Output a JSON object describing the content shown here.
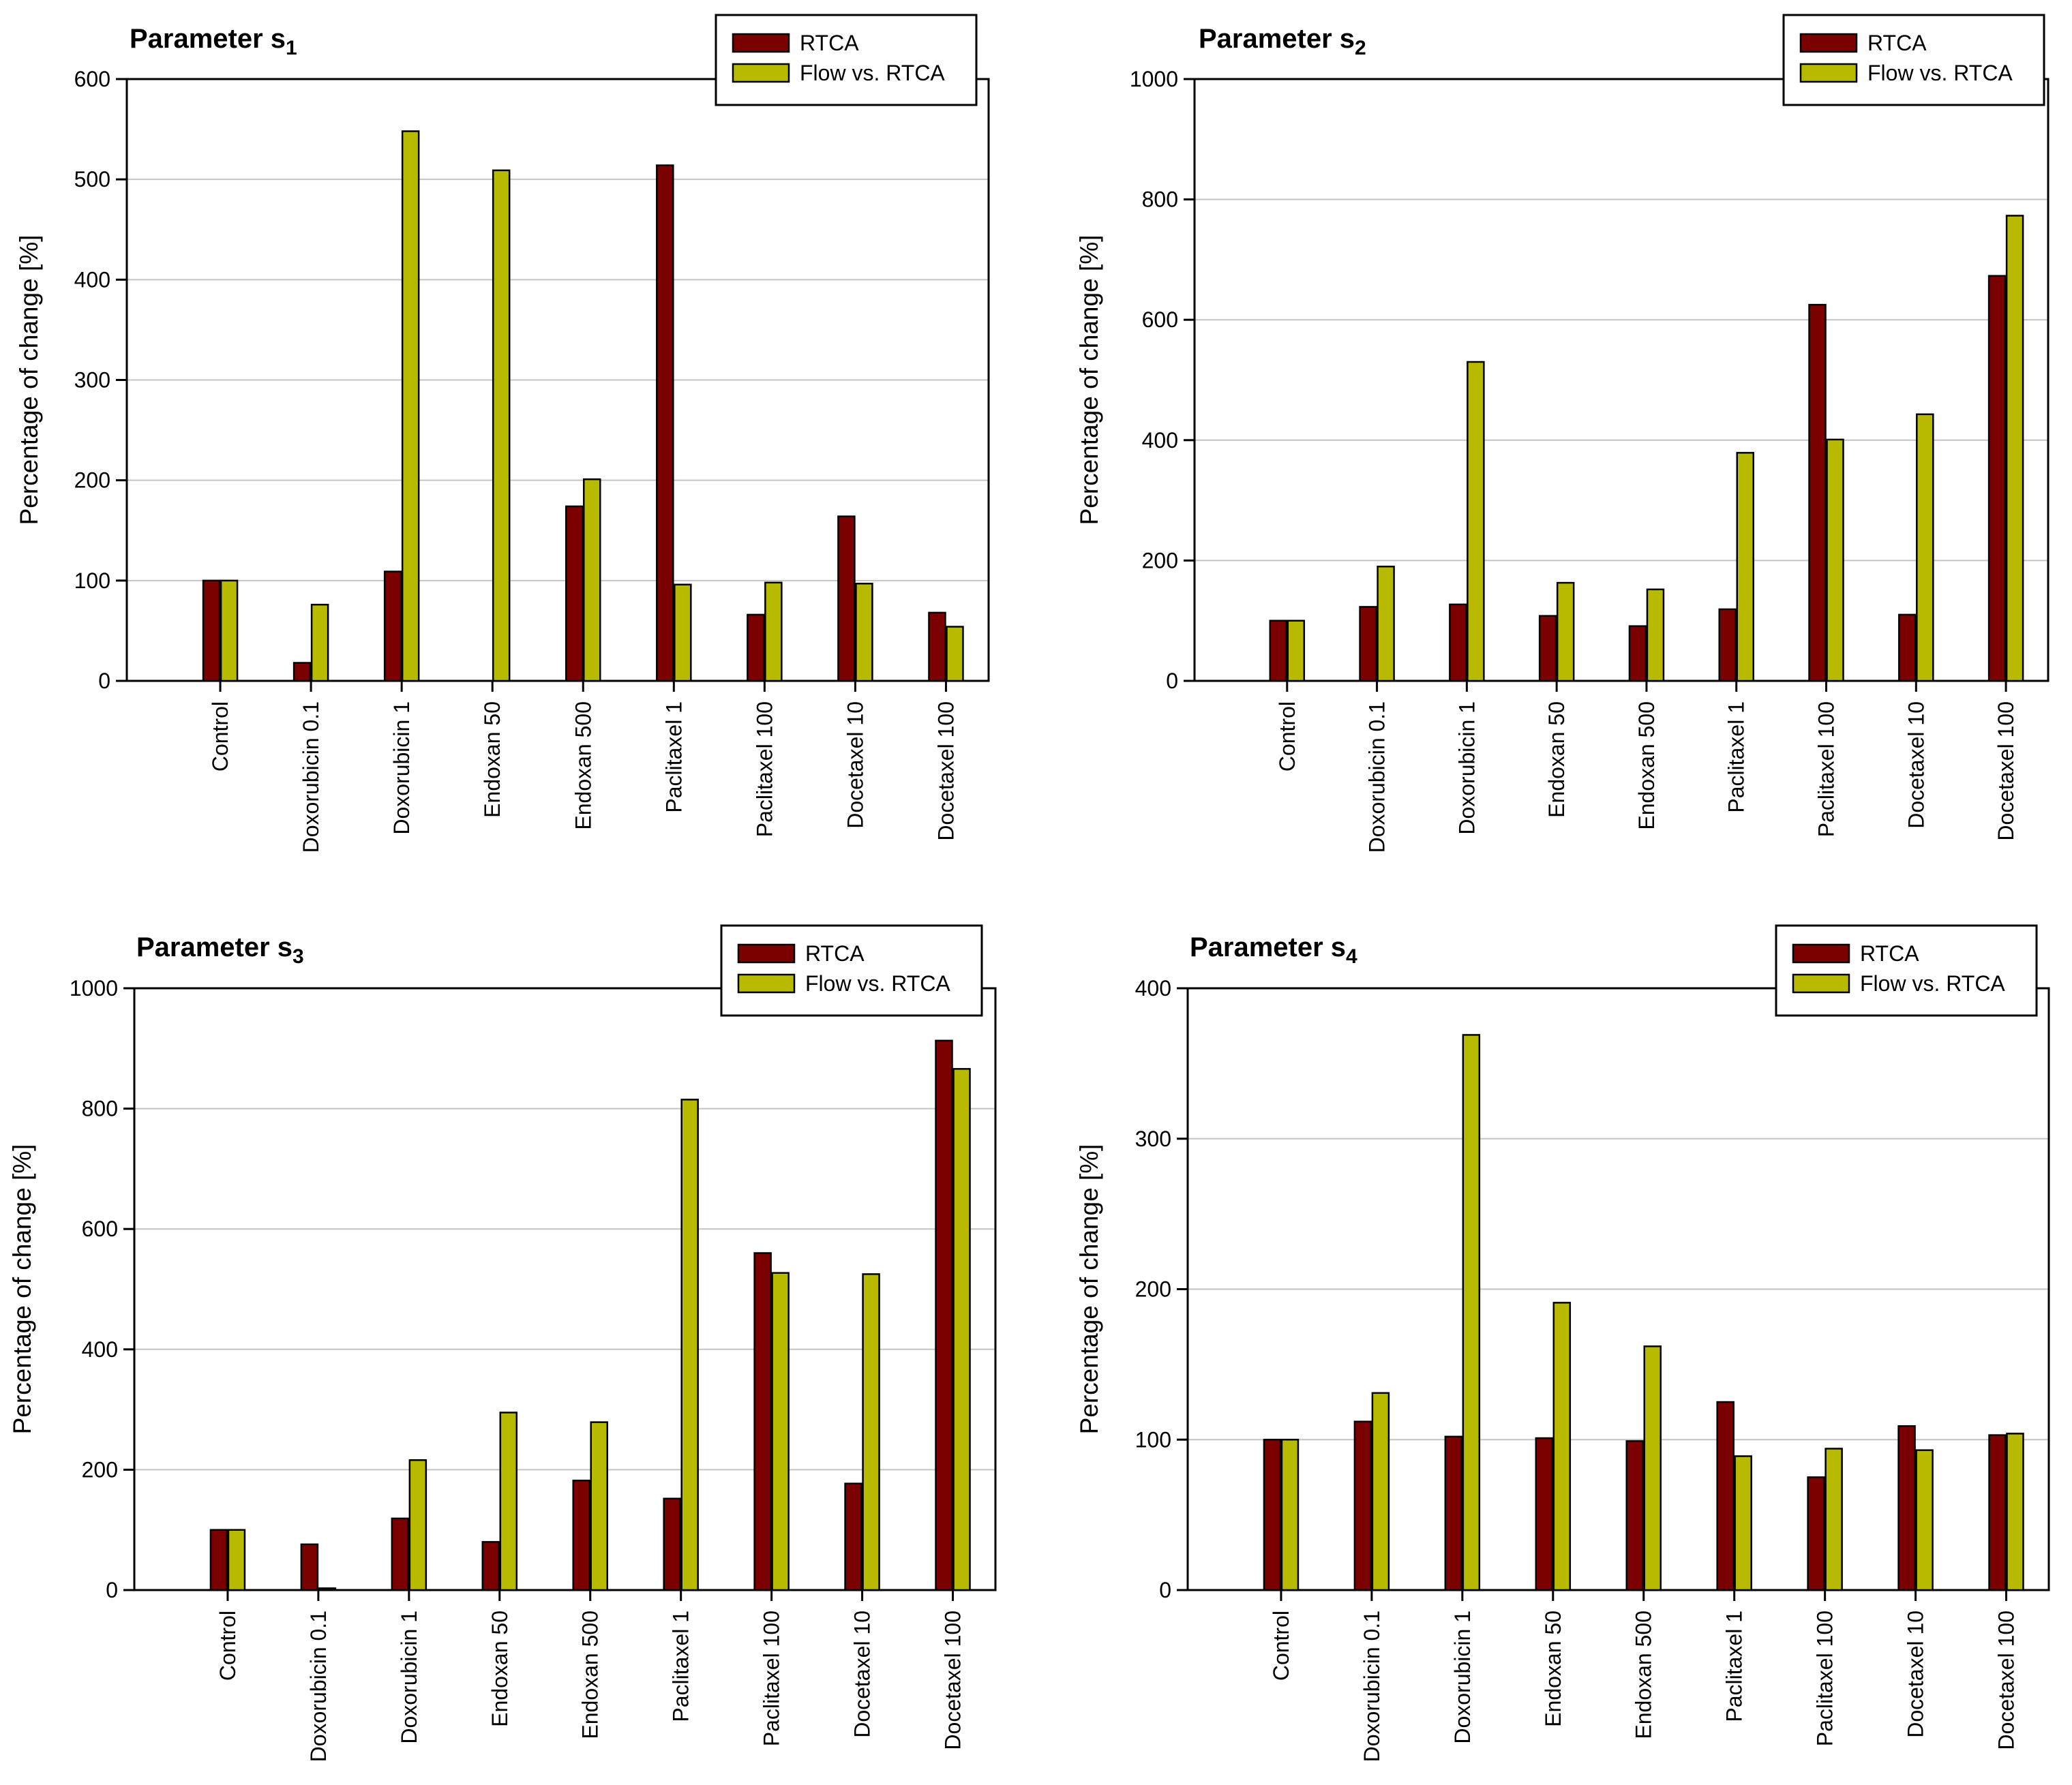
{
  "chart_data": [
    {
      "type": "bar",
      "title": "Parameter s",
      "title_subscript": "1",
      "xlabel": "",
      "ylabel": "Percentage of change [%]",
      "ylim": [
        0,
        600
      ],
      "yticks": [
        0,
        100,
        200,
        300,
        400,
        500,
        600
      ],
      "grid": true,
      "legend": "top-right",
      "categories": [
        "Control",
        "Doxorubicin 0.1",
        "Doxorubicin 1",
        "Endoxan 50",
        "Endoxan 500",
        "Paclitaxel 1",
        "Paclitaxel 100",
        "Docetaxel 10",
        "Docetaxel 100"
      ],
      "series": [
        {
          "name": "RTCA",
          "color": "#7b0000",
          "values": [
            100,
            18,
            109,
            0,
            174,
            514,
            66,
            164,
            68
          ]
        },
        {
          "name": "Flow vs. RTCA",
          "color": "#b8ba00",
          "values": [
            100,
            76,
            548,
            509,
            201,
            96,
            98,
            97,
            54
          ]
        }
      ]
    },
    {
      "type": "bar",
      "title": "Parameter s",
      "title_subscript": "2",
      "xlabel": "",
      "ylabel": "Percentage of change [%]",
      "ylim": [
        0,
        1000
      ],
      "yticks": [
        0,
        200,
        400,
        600,
        800,
        1000
      ],
      "grid": true,
      "legend": "top-right",
      "categories": [
        "Control",
        "Doxorubicin 0.1",
        "Doxorubicin 1",
        "Endoxan 50",
        "Endoxan 500",
        "Paclitaxel 1",
        "Paclitaxel 100",
        "Docetaxel 10",
        "Docetaxel 100"
      ],
      "series": [
        {
          "name": "RTCA",
          "color": "#7b0000",
          "values": [
            100,
            123,
            127,
            108,
            91,
            119,
            625,
            110,
            673
          ]
        },
        {
          "name": "Flow vs. RTCA",
          "color": "#b8ba00",
          "values": [
            100,
            190,
            530,
            163,
            152,
            379,
            401,
            443,
            773
          ]
        }
      ]
    },
    {
      "type": "bar",
      "title": "Parameter s",
      "title_subscript": "3",
      "xlabel": "",
      "ylabel": "Percentage of change [%]",
      "ylim": [
        0,
        1000
      ],
      "yticks": [
        0,
        200,
        400,
        600,
        800,
        1000
      ],
      "grid": true,
      "legend": "top-right",
      "categories": [
        "Control",
        "Doxorubicin 0.1",
        "Doxorubicin 1",
        "Endoxan 50",
        "Endoxan 500",
        "Paclitaxel 1",
        "Paclitaxel 100",
        "Docetaxel 10",
        "Docetaxel 100"
      ],
      "series": [
        {
          "name": "RTCA",
          "color": "#7b0000",
          "values": [
            100,
            76,
            119,
            80,
            182,
            152,
            560,
            177,
            913
          ]
        },
        {
          "name": "Flow vs. RTCA",
          "color": "#b8ba00",
          "values": [
            100,
            3,
            216,
            295,
            279,
            815,
            527,
            525,
            866
          ]
        }
      ]
    },
    {
      "type": "bar",
      "title": "Parameter s",
      "title_subscript": "4",
      "xlabel": "",
      "ylabel": "Percentage of change [%]",
      "ylim": [
        0,
        400
      ],
      "yticks": [
        0,
        100,
        200,
        300,
        400
      ],
      "grid": true,
      "legend": "top-right",
      "categories": [
        "Control",
        "Doxorubicin 0.1",
        "Doxorubicin 1",
        "Endoxan 50",
        "Endoxan 500",
        "Paclitaxel 1",
        "Paclitaxel 100",
        "Docetaxel 10",
        "Docetaxel 100"
      ],
      "series": [
        {
          "name": "RTCA",
          "color": "#7b0000",
          "values": [
            100,
            112,
            102,
            101,
            99,
            125,
            75,
            109,
            103
          ]
        },
        {
          "name": "Flow vs. RTCA",
          "color": "#b8ba00",
          "values": [
            100,
            131,
            369,
            191,
            162,
            89,
            94,
            93,
            104
          ]
        }
      ]
    }
  ]
}
